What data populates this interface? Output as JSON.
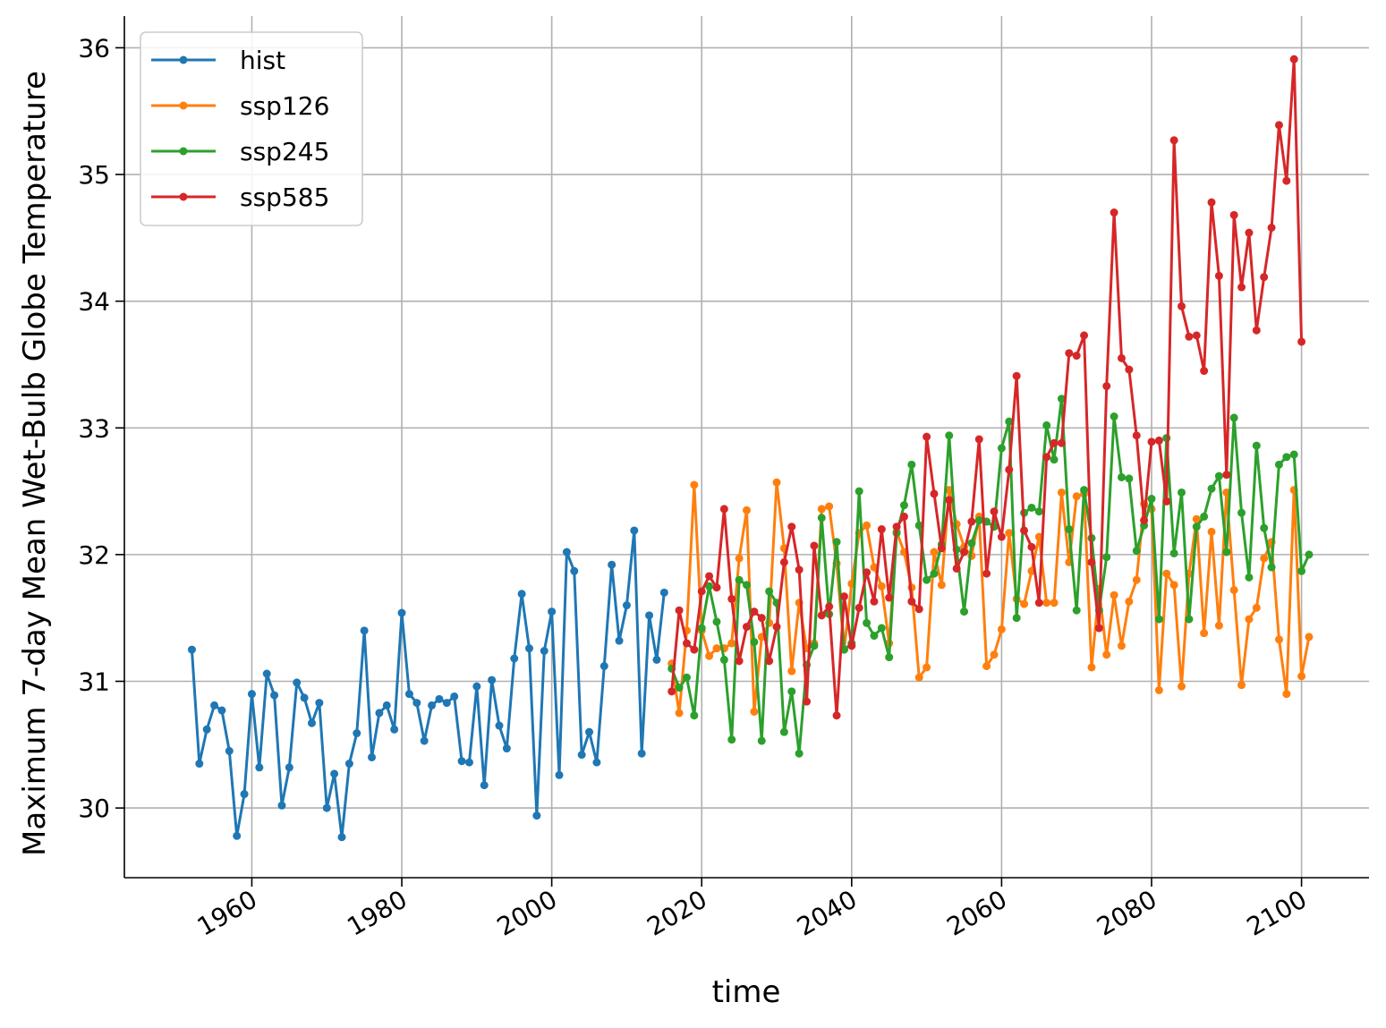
{
  "chart_data": {
    "type": "line",
    "xlabel": "time",
    "ylabel": "Maximum 7-day Mean Wet-Bulb Globe Temperature",
    "xlim": [
      1943,
      2109
    ],
    "ylim": [
      29.45,
      36.25
    ],
    "xticks": [
      1960,
      1980,
      2000,
      2020,
      2040,
      2060,
      2080,
      2100
    ],
    "xtick_labels": [
      "1960",
      "1980",
      "2000",
      "2020",
      "2040",
      "2060",
      "2080",
      "2100"
    ],
    "yticks": [
      30,
      31,
      32,
      33,
      34,
      35,
      36
    ],
    "ytick_labels": [
      "30",
      "31",
      "32",
      "33",
      "34",
      "35",
      "36"
    ],
    "grid": true,
    "legend_position": "top-left",
    "series": [
      {
        "name": "hist",
        "color": "#1f77b4",
        "x_start": 1952,
        "values": [
          31.25,
          30.35,
          30.62,
          30.81,
          30.77,
          30.45,
          29.78,
          30.11,
          30.9,
          30.32,
          31.06,
          30.89,
          30.02,
          30.32,
          30.99,
          30.87,
          30.67,
          30.83,
          30.0,
          30.27,
          29.77,
          30.35,
          30.59,
          31.4,
          30.4,
          30.75,
          30.81,
          30.62,
          31.54,
          30.9,
          30.83,
          30.53,
          30.81,
          30.86,
          30.83,
          30.88,
          30.37,
          30.36,
          30.96,
          30.18,
          31.01,
          30.65,
          30.47,
          31.18,
          31.69,
          31.26,
          29.94,
          31.24,
          31.55,
          30.26,
          32.02,
          31.87,
          30.42,
          30.6,
          30.36,
          31.12,
          31.92,
          31.32,
          31.6,
          32.19,
          30.43,
          31.52,
          31.17,
          31.7
        ]
      },
      {
        "name": "ssp126",
        "color": "#ff7f0e",
        "x_start": 2016,
        "values": [
          31.14,
          30.75,
          31.4,
          32.55,
          31.4,
          31.2,
          31.26,
          31.26,
          31.3,
          31.97,
          32.35,
          30.76,
          31.35,
          31.46,
          32.57,
          32.05,
          31.08,
          31.62,
          31.26,
          31.3,
          32.36,
          32.38,
          31.93,
          31.25,
          31.77,
          32.17,
          32.23,
          31.9,
          31.75,
          31.3,
          32.18,
          32.02,
          31.74,
          31.03,
          31.11,
          32.02,
          31.76,
          32.51,
          32.24,
          32.06,
          31.99,
          32.3,
          31.12,
          31.21,
          31.41,
          32.17,
          31.65,
          31.61,
          31.87,
          32.14,
          31.62,
          31.62,
          32.49,
          31.94,
          32.46,
          32.48,
          31.11,
          31.73,
          31.21,
          31.68,
          31.28,
          31.63,
          31.8,
          32.4,
          32.36,
          30.93,
          31.85,
          31.76,
          30.96,
          31.85,
          32.28,
          31.38,
          32.18,
          31.44,
          32.49,
          31.72,
          30.97,
          31.49,
          31.58,
          31.97,
          32.1,
          31.33,
          30.9,
          32.51,
          31.04,
          31.35
        ]
      },
      {
        "name": "ssp245",
        "color": "#2ca02c",
        "x_start": 2016,
        "values": [
          31.1,
          30.95,
          31.03,
          30.73,
          31.42,
          31.75,
          31.47,
          31.17,
          30.54,
          31.8,
          31.76,
          31.31,
          30.53,
          31.71,
          31.62,
          30.6,
          30.92,
          30.43,
          31.13,
          31.28,
          32.29,
          31.53,
          32.1,
          31.25,
          31.3,
          32.5,
          31.46,
          31.36,
          31.42,
          31.19,
          32.17,
          32.39,
          32.71,
          32.23,
          31.8,
          31.85,
          32.08,
          32.94,
          32.04,
          31.55,
          32.09,
          32.27,
          32.26,
          32.22,
          32.84,
          33.05,
          31.5,
          32.33,
          32.37,
          32.34,
          33.02,
          32.75,
          33.23,
          32.2,
          31.56,
          32.51,
          32.13,
          31.56,
          31.98,
          33.09,
          32.61,
          32.6,
          32.03,
          32.23,
          32.44,
          31.49,
          32.92,
          32.01,
          32.49,
          31.49,
          32.22,
          32.3,
          32.52,
          32.62,
          32.02,
          33.08,
          32.33,
          31.82,
          32.86,
          32.21,
          31.9,
          32.71,
          32.77,
          32.79,
          31.87,
          32.0
        ]
      },
      {
        "name": "ssp585",
        "color": "#d62728",
        "x_start": 2016,
        "values": [
          30.92,
          31.56,
          31.3,
          31.25,
          31.71,
          31.83,
          31.74,
          32.36,
          31.65,
          31.16,
          31.43,
          31.55,
          31.5,
          31.16,
          31.43,
          31.94,
          32.22,
          31.88,
          30.84,
          32.07,
          31.52,
          31.59,
          30.73,
          31.67,
          31.28,
          31.58,
          31.86,
          31.63,
          32.2,
          31.66,
          32.22,
          32.3,
          31.63,
          31.57,
          32.93,
          32.48,
          32.05,
          32.43,
          31.89,
          32.02,
          32.26,
          32.91,
          31.85,
          32.34,
          32.14,
          32.67,
          33.41,
          32.19,
          32.06,
          31.62,
          32.77,
          32.88,
          32.88,
          33.59,
          33.57,
          33.73,
          31.94,
          31.42,
          33.33,
          34.7,
          33.55,
          33.46,
          32.94,
          32.27,
          32.89,
          32.9,
          32.42,
          35.27,
          33.96,
          33.72,
          33.73,
          33.45,
          34.78,
          34.2,
          32.63,
          34.68,
          34.11,
          34.54,
          33.77,
          34.19,
          34.58,
          35.39,
          34.95,
          35.91,
          33.68
        ]
      }
    ]
  }
}
